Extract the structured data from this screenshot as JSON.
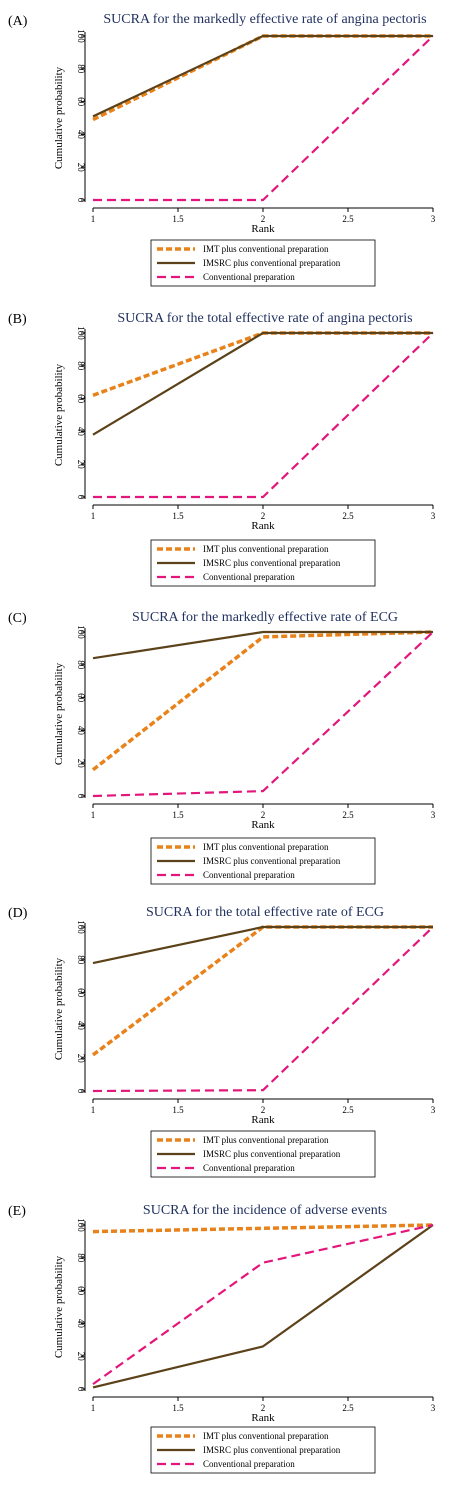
{
  "legend": [
    "IMT plus conventional preparation",
    "IMSRC plus conventional preparation",
    "Conventional preparation"
  ],
  "colors": {
    "imt": "#e8821a",
    "imsrc": "#5b4219",
    "conventional": "#e3167b",
    "title": "#1f2f5e"
  },
  "chart_data": [
    {
      "type": "line",
      "panel_label": "(A)",
      "title": "SUCRA for the markedly effective rate of angina pectoris",
      "xlabel": "Rank",
      "ylabel": "Cumulative probability",
      "x": [
        1,
        2,
        3
      ],
      "xticks": [
        "1",
        "1.5",
        "2",
        "2.5",
        "3"
      ],
      "yticks": [
        "0",
        "20",
        "40",
        "60",
        "80",
        "100"
      ],
      "xlim": [
        1,
        3
      ],
      "ylim": [
        0,
        100
      ],
      "series": [
        {
          "name": "IMT plus conventional preparation",
          "values": [
            49,
            100,
            100
          ]
        },
        {
          "name": "IMSRC plus conventional preparation",
          "values": [
            51,
            100,
            100
          ]
        },
        {
          "name": "Conventional preparation",
          "values": [
            0,
            0,
            100
          ]
        }
      ]
    },
    {
      "type": "line",
      "panel_label": "(B)",
      "title": "SUCRA for the total effective rate of angina pectoris",
      "xlabel": "Rank",
      "ylabel": "Cumulative probability",
      "x": [
        1,
        2,
        3
      ],
      "xticks": [
        "1",
        "1.5",
        "2",
        "2.5",
        "3"
      ],
      "yticks": [
        "0",
        "20",
        "40",
        "60",
        "80",
        "100"
      ],
      "xlim": [
        1,
        3
      ],
      "ylim": [
        0,
        100
      ],
      "series": [
        {
          "name": "IMT plus conventional preparation",
          "values": [
            62,
            100,
            100
          ]
        },
        {
          "name": "IMSRC plus conventional preparation",
          "values": [
            38,
            100,
            100
          ]
        },
        {
          "name": "Conventional preparation",
          "values": [
            0,
            0,
            100
          ]
        }
      ]
    },
    {
      "type": "line",
      "panel_label": "(C)",
      "title": "SUCRA for the markedly effective rate of ECG",
      "xlabel": "Rank",
      "ylabel": "Cumulative probability",
      "x": [
        1,
        2,
        3
      ],
      "xticks": [
        "1",
        "1.5",
        "2",
        "2.5",
        "3"
      ],
      "yticks": [
        "0",
        "20",
        "40",
        "60",
        "80",
        "100"
      ],
      "xlim": [
        1,
        3
      ],
      "ylim": [
        0,
        100
      ],
      "series": [
        {
          "name": "IMT plus conventional preparation",
          "values": [
            16,
            97,
            100
          ]
        },
        {
          "name": "IMSRC plus conventional preparation",
          "values": [
            84,
            100,
            100
          ]
        },
        {
          "name": "Conventional preparation",
          "values": [
            0,
            3,
            100
          ]
        }
      ]
    },
    {
      "type": "line",
      "panel_label": "(D)",
      "title": "SUCRA for the total effective rate of ECG",
      "xlabel": "Rank",
      "ylabel": "Cumulative probability",
      "x": [
        1,
        2,
        3
      ],
      "xticks": [
        "1",
        "1.5",
        "2",
        "2.5",
        "3"
      ],
      "yticks": [
        "0",
        "20",
        "40",
        "60",
        "80",
        "100"
      ],
      "xlim": [
        1,
        3
      ],
      "ylim": [
        0,
        100
      ],
      "series": [
        {
          "name": "IMT plus conventional preparation",
          "values": [
            22,
            100,
            100
          ]
        },
        {
          "name": "IMSRC plus conventional preparation",
          "values": [
            78,
            100,
            100
          ]
        },
        {
          "name": "Conventional preparation",
          "values": [
            0,
            0.5,
            100
          ]
        }
      ]
    },
    {
      "type": "line",
      "panel_label": "(E)",
      "title": "SUCRA for the incidence of adverse events",
      "xlabel": "Rank",
      "ylabel": "Cumulative probability",
      "x": [
        1,
        2,
        3
      ],
      "xticks": [
        "1",
        "1.5",
        "2",
        "2.5",
        "3"
      ],
      "yticks": [
        "0",
        "20",
        "40",
        "60",
        "80",
        "100"
      ],
      "xlim": [
        1,
        3
      ],
      "ylim": [
        0,
        100
      ],
      "series": [
        {
          "name": "IMT plus conventional preparation",
          "values": [
            96,
            98,
            100
          ]
        },
        {
          "name": "IMSRC plus conventional preparation",
          "values": [
            1,
            26,
            100
          ]
        },
        {
          "name": "Conventional preparation",
          "values": [
            3,
            77,
            100
          ]
        }
      ]
    }
  ]
}
